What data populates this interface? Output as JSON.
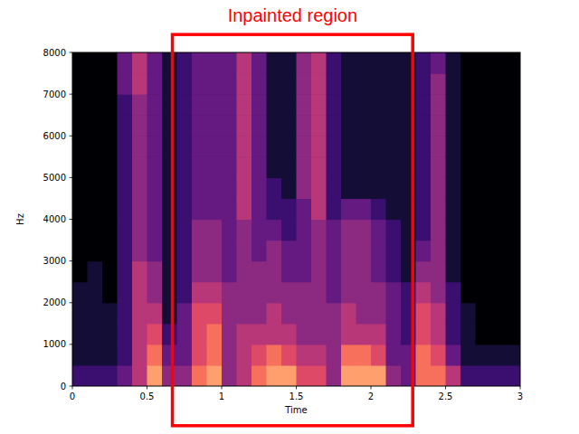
{
  "chart_data": {
    "type": "heatmap",
    "xlabel": "Time",
    "ylabel": "Hz",
    "xlim": [
      0,
      3
    ],
    "ylim": [
      0,
      8000
    ],
    "xticks": [
      0,
      0.5,
      1,
      1.5,
      2,
      2.5,
      3
    ],
    "yticks": [
      0,
      1000,
      2000,
      3000,
      4000,
      5000,
      6000,
      7000,
      8000
    ],
    "x_edges": [
      0,
      0.1,
      0.2,
      0.3,
      0.4,
      0.5,
      0.6,
      0.7,
      0.8,
      0.9,
      1,
      1.1,
      1.2,
      1.3,
      1.4,
      1.5,
      1.6,
      1.7,
      1.8,
      1.9,
      2,
      2.1,
      2.2,
      2.3,
      2.4,
      2.5,
      2.6,
      2.7,
      2.8,
      2.9,
      3
    ],
    "y_edges": [
      0,
      500,
      1000,
      1500,
      2000,
      2500,
      3000,
      3500,
      4000,
      4500,
      5000,
      5500,
      6000,
      6500,
      7000,
      7500,
      8000
    ],
    "clim": [
      0,
      10
    ],
    "cells": [
      [
        2,
        1,
        1,
        1,
        1,
        0,
        0,
        0,
        0,
        0,
        0,
        0,
        0,
        0,
        0,
        0
      ],
      [
        2,
        1,
        1,
        1,
        1,
        1,
        0,
        0,
        0,
        0,
        0,
        0,
        0,
        0,
        0,
        0
      ],
      [
        2,
        1,
        1,
        1,
        0,
        0,
        0,
        0,
        0,
        0,
        0,
        0,
        0,
        0,
        0,
        0
      ],
      [
        3,
        2,
        2,
        2,
        2,
        2,
        2,
        2,
        2,
        2,
        2,
        2,
        2,
        2,
        3,
        3
      ],
      [
        5,
        5,
        5,
        5,
        5,
        5,
        4,
        4,
        4,
        4,
        4,
        4,
        4,
        4,
        5,
        5
      ],
      [
        8,
        7,
        6,
        5,
        4,
        4,
        3,
        3,
        3,
        3,
        3,
        3,
        3,
        3,
        3,
        3
      ],
      [
        4,
        3,
        2,
        1,
        1,
        1,
        1,
        1,
        1,
        1,
        1,
        1,
        1,
        1,
        1,
        1
      ],
      [
        4,
        3,
        3,
        3,
        2,
        2,
        2,
        2,
        2,
        2,
        2,
        2,
        2,
        2,
        2,
        2
      ],
      [
        7,
        6,
        6,
        6,
        5,
        4,
        4,
        4,
        3,
        3,
        3,
        3,
        3,
        3,
        3,
        3
      ],
      [
        8,
        7,
        7,
        6,
        5,
        4,
        4,
        4,
        3,
        3,
        3,
        3,
        3,
        3,
        3,
        3
      ],
      [
        4,
        4,
        4,
        4,
        4,
        3,
        3,
        3,
        3,
        3,
        3,
        3,
        3,
        3,
        3,
        3
      ],
      [
        5,
        5,
        5,
        4,
        4,
        4,
        4,
        4,
        5,
        5,
        5,
        5,
        5,
        5,
        5,
        5
      ],
      [
        7,
        6,
        5,
        4,
        4,
        4,
        3,
        3,
        3,
        3,
        3,
        3,
        3,
        3,
        3,
        3
      ],
      [
        8,
        7,
        5,
        5,
        4,
        4,
        4,
        3,
        2,
        2,
        1,
        1,
        1,
        1,
        1,
        1
      ],
      [
        8,
        6,
        5,
        4,
        4,
        3,
        3,
        2,
        2,
        1,
        1,
        1,
        1,
        1,
        1,
        1
      ],
      [
        6,
        5,
        4,
        4,
        4,
        3,
        3,
        3,
        3,
        4,
        4,
        4,
        4,
        4,
        4,
        4
      ],
      [
        6,
        5,
        4,
        4,
        4,
        4,
        4,
        4,
        5,
        5,
        5,
        5,
        5,
        5,
        5,
        5
      ],
      [
        4,
        4,
        4,
        4,
        3,
        3,
        3,
        3,
        2,
        2,
        2,
        2,
        2,
        2,
        2,
        2
      ],
      [
        8,
        7,
        5,
        5,
        4,
        4,
        4,
        4,
        3,
        1,
        1,
        1,
        1,
        1,
        1,
        1
      ],
      [
        8,
        7,
        5,
        4,
        4,
        4,
        4,
        4,
        3,
        1,
        1,
        1,
        1,
        1,
        1,
        1
      ],
      [
        8,
        6,
        5,
        4,
        4,
        3,
        3,
        3,
        2,
        1,
        1,
        1,
        1,
        1,
        1,
        1
      ],
      [
        4,
        3,
        3,
        3,
        3,
        2,
        2,
        2,
        1,
        1,
        1,
        1,
        1,
        1,
        1,
        1
      ],
      [
        3,
        3,
        2,
        2,
        2,
        1,
        1,
        1,
        1,
        1,
        1,
        1,
        1,
        1,
        1,
        1
      ],
      [
        7,
        7,
        6,
        6,
        5,
        4,
        3,
        2,
        2,
        2,
        2,
        2,
        2,
        2,
        2,
        2
      ],
      [
        7,
        6,
        5,
        5,
        4,
        4,
        4,
        4,
        4,
        4,
        4,
        4,
        4,
        4,
        4,
        3
      ],
      [
        5,
        3,
        2,
        2,
        2,
        1,
        1,
        1,
        1,
        1,
        1,
        1,
        1,
        1,
        1,
        1
      ],
      [
        2,
        1,
        1,
        1,
        0,
        0,
        0,
        0,
        0,
        0,
        0,
        0,
        0,
        0,
        0,
        0
      ],
      [
        2,
        1,
        0,
        0,
        0,
        0,
        0,
        0,
        0,
        0,
        0,
        0,
        0,
        0,
        0,
        0
      ],
      [
        2,
        1,
        0,
        0,
        0,
        0,
        0,
        0,
        0,
        0,
        0,
        0,
        0,
        0,
        0,
        0
      ],
      [
        2,
        1,
        0,
        0,
        0,
        0,
        0,
        0,
        0,
        0,
        0,
        0,
        0,
        0,
        0,
        0
      ]
    ],
    "annotation": {
      "text": "Inpainted region",
      "color": "red",
      "x": [
        0.67,
        2.28
      ],
      "y": [
        -950,
        8430
      ]
    }
  }
}
